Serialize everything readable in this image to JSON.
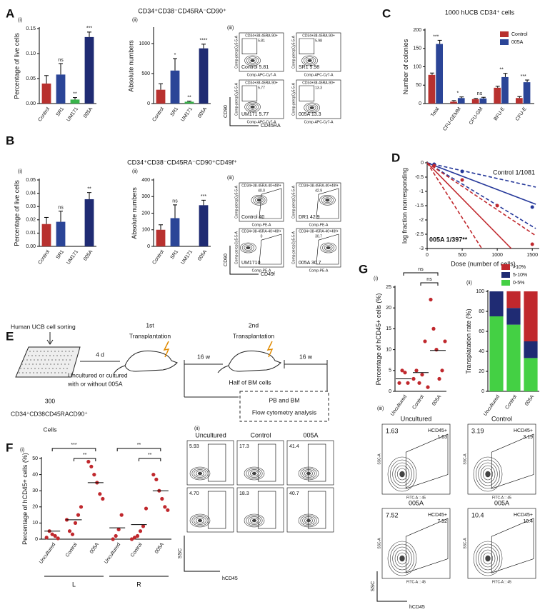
{
  "panel_letters": [
    "A",
    "B",
    "C",
    "D",
    "E",
    "F",
    "G"
  ],
  "chart_data": [
    {
      "type": "bar",
      "label": "(i)",
      "ylabel": "Percentage of live cells",
      "categories": [
        "Control",
        "SR1",
        "UM171",
        "005A"
      ],
      "values": [
        0.04,
        0.058,
        0.008,
        0.133
      ],
      "errors": [
        0.016,
        0.022,
        0.004,
        0.01
      ],
      "colors": [
        "#b8312f",
        "#2b4597",
        "#38b44a",
        "#1f2b73"
      ],
      "significance": [
        null,
        "ns",
        "**",
        "***"
      ],
      "ylim": [
        0,
        0.15
      ],
      "yticks": [
        {
          "value": 0,
          "label": "0.00"
        },
        {
          "value": 0.05,
          "label": "0.05"
        },
        {
          "value": 0.1,
          "label": "0.10"
        },
        {
          "value": 0.15,
          "label": "0.15"
        }
      ]
    },
    {
      "type": "bar",
      "title": "CD34⁺CD38⁻CD45RA⁻CD90⁺",
      "label": "(ii)",
      "ylabel": "Absolute numbers",
      "categories": [
        "Control",
        "SR1",
        "UM171",
        "005A"
      ],
      "values": [
        230,
        550,
        30,
        920
      ],
      "errors": [
        100,
        200,
        10,
        70
      ],
      "colors": [
        "#b8312f",
        "#2b4597",
        "#38b44a",
        "#1f2b73"
      ],
      "significance": [
        null,
        "*",
        "**",
        "****"
      ],
      "ylim": [
        0,
        1250
      ],
      "yticks": [
        0,
        500,
        1000
      ]
    },
    {
      "type": "bar",
      "title": "1000 hUCB CD34⁺ cells",
      "ylabel": "Number of colonies",
      "categories": [
        "Total",
        "CFU-GEMM",
        "CFU-GM",
        "BFU-E",
        "CFU-E"
      ],
      "series": [
        {
          "name": "Control",
          "color": "#b8312f",
          "values": [
            78,
            5,
            12,
            43,
            15
          ],
          "errors": [
            5,
            3,
            2,
            4,
            4
          ]
        },
        {
          "name": "005A",
          "color": "#2b4597",
          "values": [
            162,
            15,
            14,
            72,
            58
          ],
          "errors": [
            10,
            3,
            3,
            10,
            6
          ]
        }
      ],
      "significance": [
        "***",
        "*",
        "ns",
        "**",
        "***"
      ],
      "ylim": [
        0,
        200
      ],
      "yticks": [
        0,
        50,
        100,
        150,
        200
      ],
      "legend": "upper right"
    },
    {
      "type": "bar",
      "label": "(i)",
      "ylabel": "Percentage of live cells",
      "categories": [
        "Control",
        "SR1",
        "UM171",
        "005A"
      ],
      "values": [
        0.0168,
        0.0185,
        null,
        0.0355
      ],
      "errors": [
        0.005,
        0.008,
        null,
        0.005
      ],
      "colors": [
        "#b8312f",
        "#2b4597",
        "#38b44a",
        "#1f2b73"
      ],
      "significance": [
        null,
        "ns",
        null,
        "**"
      ],
      "ylim": [
        0,
        0.05
      ],
      "yticks": [
        {
          "value": 0,
          "label": "0.00"
        },
        {
          "value": 0.01,
          "label": "0.01"
        },
        {
          "value": 0.02,
          "label": "0.02"
        },
        {
          "value": 0.03,
          "label": "0.03"
        },
        {
          "value": 0.04,
          "label": "0.04"
        },
        {
          "value": 0.05,
          "label": "0.05"
        }
      ]
    },
    {
      "type": "bar",
      "title": "CD34⁺CD38⁻CD45RA⁻CD90⁺CD49f⁺",
      "label": "(ii)",
      "ylabel": "Absolute numbers",
      "categories": [
        "Control",
        "SR1",
        "UM171",
        "005A"
      ],
      "values": [
        100,
        170,
        null,
        248
      ],
      "errors": [
        30,
        80,
        null,
        30
      ],
      "colors": [
        "#b8312f",
        "#2b4597",
        "#38b44a",
        "#1f2b73"
      ],
      "significance": [
        null,
        "ns",
        null,
        "***"
      ],
      "ylim": [
        0,
        400
      ],
      "yticks": [
        0,
        100,
        200,
        300,
        400
      ]
    },
    {
      "type": "line",
      "ylabel": "log fraction nonresponding",
      "xlabel": "Dose (number of cells)",
      "xlim": [
        0,
        1600
      ],
      "xticks": [
        0,
        500,
        1000,
        1500
      ],
      "ylim": [
        -3,
        0
      ],
      "yticks": [
        0,
        -0.5,
        -1,
        -1.5,
        -2,
        -2.5,
        -3
      ],
      "series": [
        {
          "color": "#25389a",
          "style": "solid",
          "x": [
            0,
            1550
          ],
          "values": [
            0,
            -1.45
          ]
        },
        {
          "color": "#25389a",
          "style": "dashed",
          "x": [
            0,
            1550
          ],
          "values": [
            0,
            -0.85
          ]
        },
        {
          "color": "#25389a",
          "style": "dashed",
          "x": [
            0,
            1550
          ],
          "values": [
            0,
            -2.3
          ]
        },
        {
          "color": "#c0282d",
          "style": "solid",
          "x": [
            0,
            1200
          ],
          "values": [
            0,
            -3
          ]
        },
        {
          "color": "#c0282d",
          "style": "dashed",
          "x": [
            0,
            1550
          ],
          "values": [
            0,
            -2.55
          ]
        },
        {
          "color": "#c0282d",
          "style": "dashed",
          "x": [
            0,
            780
          ],
          "values": [
            0,
            -3
          ]
        },
        {
          "color": "#25389a",
          "style": "points",
          "x": [
            100,
            500,
            1500
          ],
          "values": [
            -0.05,
            -0.3,
            -1.55
          ]
        },
        {
          "color": "#c0282d",
          "style": "points",
          "x": [
            100,
            500,
            1000,
            1500
          ],
          "values": [
            -0.1,
            -0.6,
            -1.5,
            -2.85
          ]
        }
      ],
      "annotations": [
        "Control 1/1081",
        "005A 1/397**"
      ]
    },
    {
      "type": "dot",
      "label": "(i)",
      "ylabel": "Percentage of hCD45+ cells (%)",
      "categories": [
        "Uncultured",
        "Control",
        "005A"
      ],
      "values": [
        [
          2,
          5,
          4.5,
          2
        ],
        [
          3,
          5,
          2,
          4,
          12,
          1
        ],
        [
          22,
          15,
          10,
          3,
          5,
          12
        ]
      ],
      "medians": [
        3,
        4.5,
        9.8
      ],
      "color": "#c0282d",
      "brackets": [
        "ns",
        "ns"
      ],
      "ylim": [
        0,
        25
      ],
      "yticks": [
        0,
        5,
        10,
        15,
        20,
        25
      ]
    },
    {
      "type": "bar",
      "stacked": true,
      "label": "(ii)",
      "ylabel": "Transplatation rate (%)",
      "categories": [
        "Uncultured",
        "Control",
        "005A"
      ],
      "series": [
        {
          "name": "0-5%",
          "color": "#44d044",
          "values": [
            75,
            66.7,
            33.3
          ]
        },
        {
          "name": "5-10%",
          "color": "#1f2b73",
          "values": [
            25,
            16.7,
            16.7
          ]
        },
        {
          "name": ">10%",
          "color": "#c0282d",
          "values": [
            0,
            16.7,
            50
          ]
        }
      ],
      "ylim": [
        0,
        100
      ],
      "yticks": [
        0,
        20,
        40,
        60,
        80,
        100
      ],
      "legend": "upper right"
    },
    {
      "type": "dot",
      "label": "(i)",
      "ylabel": "Percentage of hCD45+ cells (%)",
      "categories": [
        "Uncultured",
        "Control",
        "005A",
        "Uncultured",
        "Control",
        "005A"
      ],
      "groups": [
        "L",
        "R"
      ],
      "values": [
        [
          1,
          5,
          3,
          2,
          0.5
        ],
        [
          12,
          5,
          3,
          10,
          15,
          20
        ],
        [
          48,
          45,
          40,
          35,
          28,
          25
        ],
        [
          0,
          2,
          6,
          15
        ],
        [
          0,
          1,
          2,
          5,
          8,
          19
        ],
        [
          40,
          37,
          30,
          25,
          20,
          18
        ]
      ],
      "medians": [
        5,
        12,
        35,
        7,
        9,
        30
      ],
      "color": "#c0282d",
      "brackets": [
        "***",
        "**",
        "**",
        "**"
      ],
      "ylim": [
        0,
        50
      ],
      "yticks": [
        0,
        10,
        20,
        30,
        40,
        50
      ]
    }
  ],
  "flow": {
    "A": {
      "label": "(iii)",
      "ylabel": "CD90",
      "xlabel": "CD45RA",
      "axis_y": "Comp-percpCy5-5-A",
      "axis_x": "Comp-APC-Cy7-A",
      "plots": [
        {
          "header": "CD34+38-45RA-90+",
          "gate": "5.81",
          "caption": "Control 5.81"
        },
        {
          "header": "CD34+38-45RA-90+",
          "gate": "5.98",
          "caption": "SR1 5.98"
        },
        {
          "header": "CD34+38-45RA-90+",
          "gate": "5.77",
          "caption": "UM171 5.77"
        },
        {
          "header": "CD34+38-45RA-90+",
          "gate": "13.3",
          "caption": "005A 13.3"
        }
      ]
    },
    "B": {
      "label": "(iii)",
      "ylabel": "CD90",
      "xlabel": "CD49f",
      "axis_y": "Comp-percpCy5-5-A",
      "axis_x": "Comp-PE-A",
      "plots": [
        {
          "header": "CD34+38-45RA-40+49f+",
          "gate": "40.0",
          "caption": "Control 40"
        },
        {
          "header": "CD34+38-45RA-40+49f+",
          "gate": "42.9",
          "caption": "DR1 42.9"
        },
        {
          "header": "CD34+38-45RA-40+49f+",
          "gate": "0",
          "caption": "UM1710"
        },
        {
          "header": "CD34+38-45RA-40+49f+",
          "gate": "30.7",
          "caption": "005A 30.7"
        }
      ]
    },
    "F": {
      "label": "(ii)",
      "ylabel": "SSC",
      "xlabel": "hCD45",
      "columns": [
        "Uncultured",
        "Control",
        "005A"
      ],
      "gates": [
        [
          "5.93",
          "17.3",
          "41.4"
        ],
        [
          "4.70",
          "18.3",
          "40.7"
        ]
      ]
    },
    "G": {
      "label": "(iii)",
      "ylabel": "SSC",
      "xlabel": "hCD45",
      "axis_y": "SSC-A",
      "axis_x": "FITC-A :: 45",
      "gate_name": "HCD45+",
      "plots": [
        {
          "title": "Uncultured",
          "value": "1.63"
        },
        {
          "title": "Control",
          "value": "3.19"
        },
        {
          "title": "005A",
          "value": "7.52"
        },
        {
          "title": "005A",
          "value": "10.4"
        }
      ]
    }
  },
  "diagram": {
    "sorting": "Human UCB cell sorting",
    "culture_time": "4 d",
    "culture": [
      "Uncultured or cultured",
      "with or without 005A"
    ],
    "cell_number": "300",
    "phenotype": "CD34⁺CD38CD45RACD90⁺",
    "cells": "Cells",
    "first": [
      "1st",
      "Transplantation"
    ],
    "interval_1": "16 w",
    "second": [
      "2nd",
      "Transplantation"
    ],
    "half": "Half of BM cells",
    "interval_2": "16 w",
    "analysis": [
      "PB and BM",
      "Flow cytometry analysis"
    ]
  }
}
